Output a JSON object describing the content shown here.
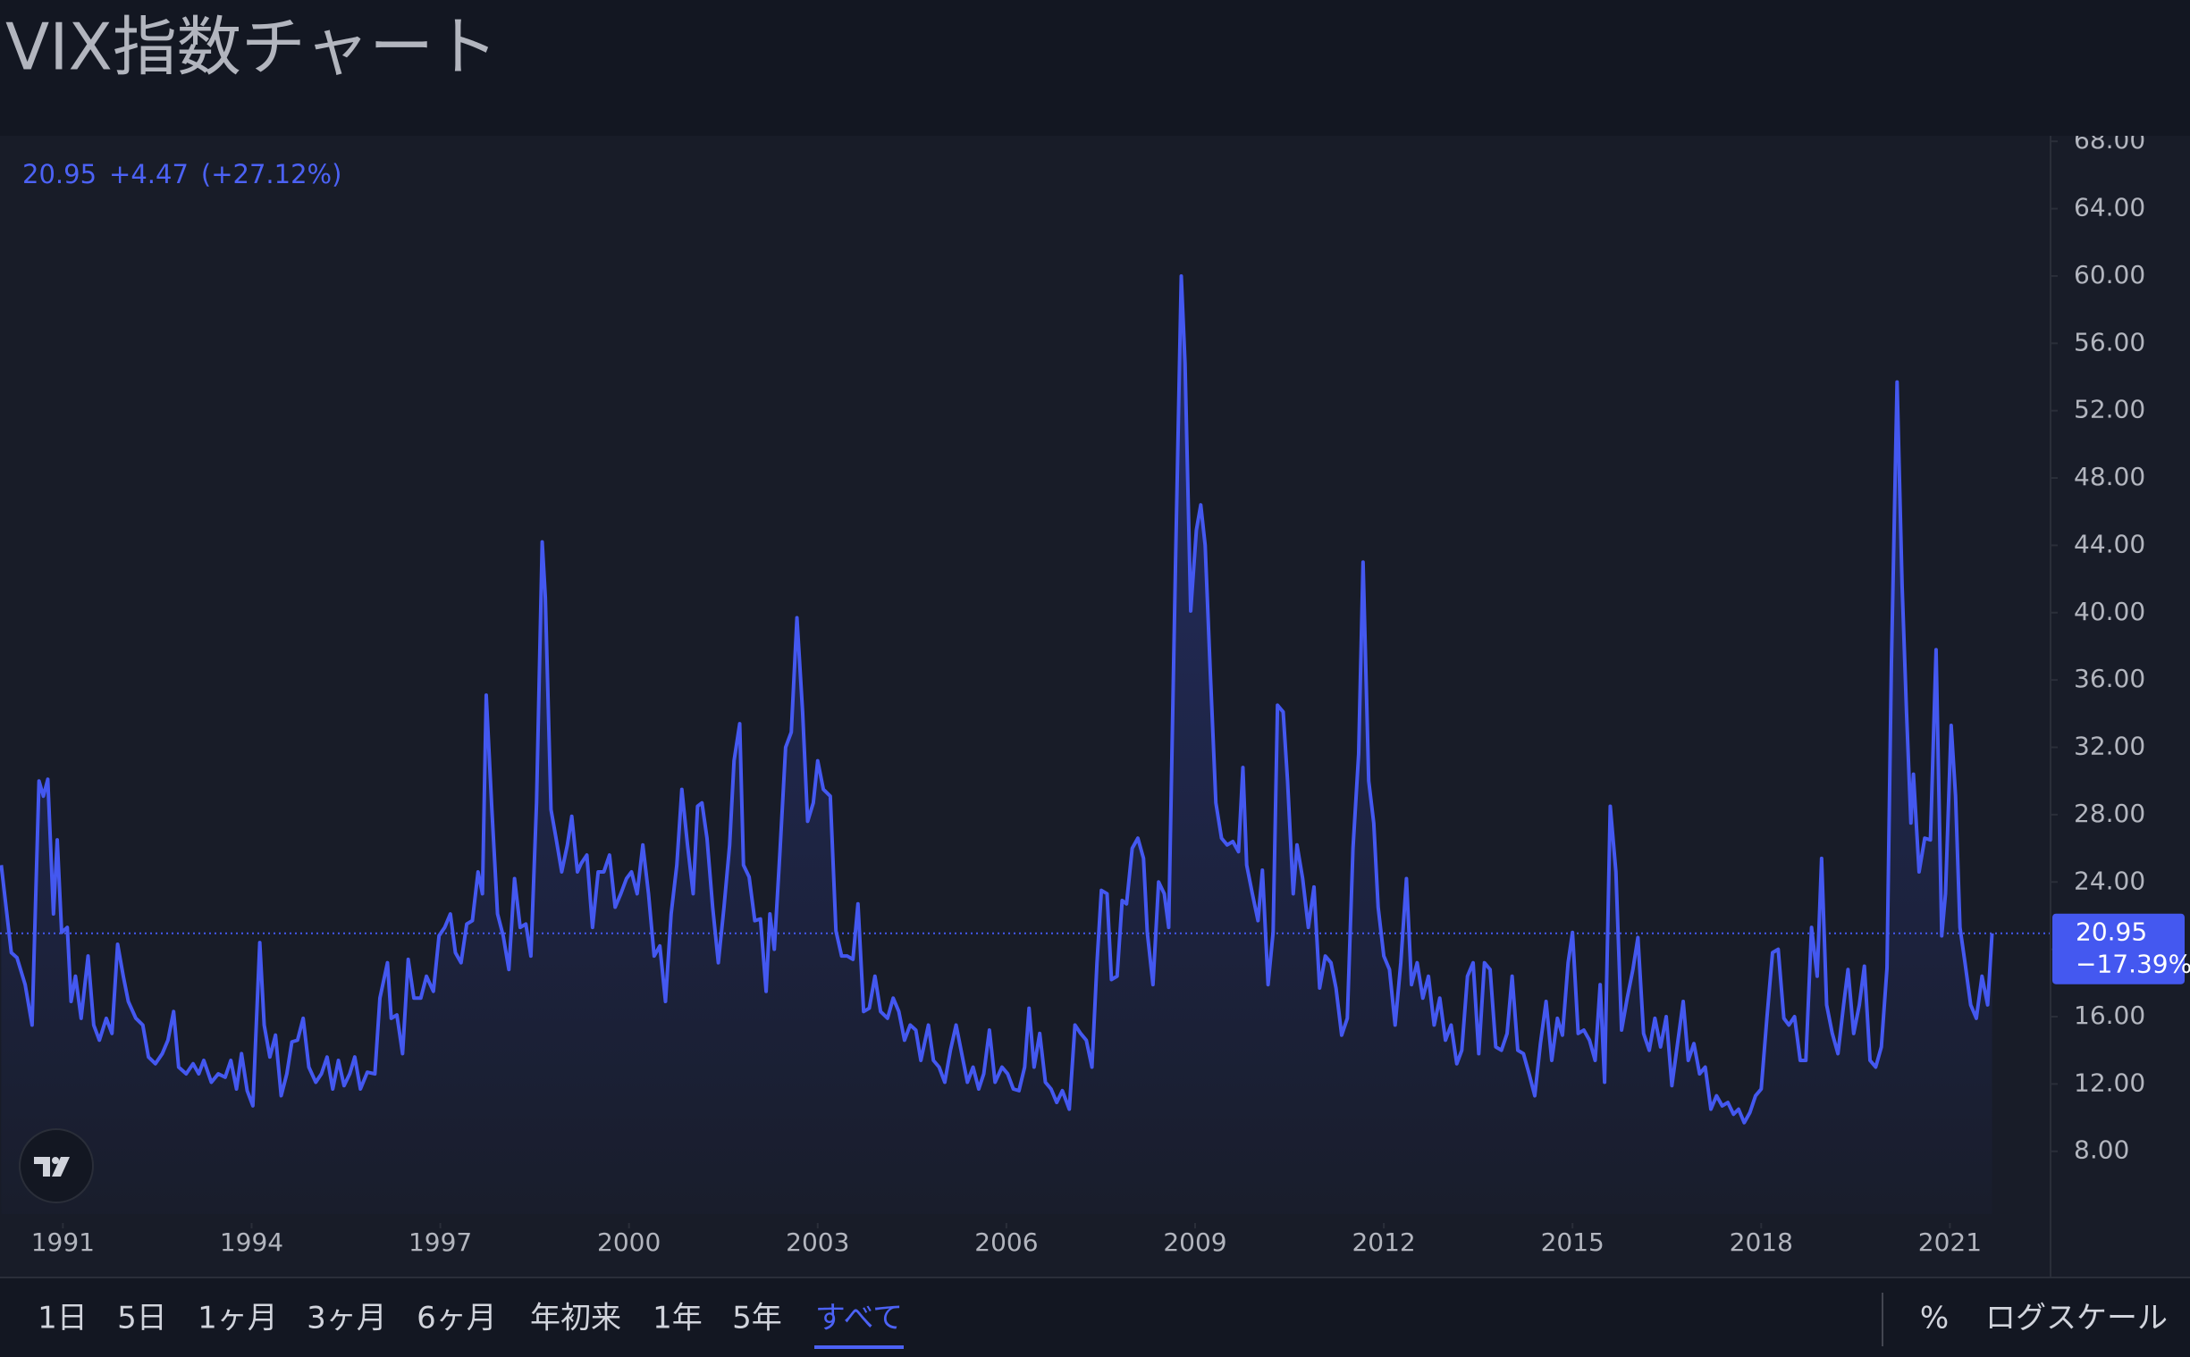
{
  "title": "VIX指数チャート",
  "chart_data": {
    "type": "line",
    "color": "#4458f0",
    "log_scale": false,
    "grid": false,
    "quote": {
      "last": 20.95,
      "change": "+4.47",
      "change_percent": "(+27.12%)"
    },
    "price_label": {
      "value": 20.95,
      "change": "−17.39%"
    },
    "xlim": [
      1990.0,
      2022.6
    ],
    "xticks": [
      1991,
      1994,
      1997,
      2000,
      2003,
      2006,
      2009,
      2012,
      2015,
      2018,
      2021
    ],
    "ylim": [
      4.27,
      68.33
    ],
    "yticks": [
      {
        "value": 8,
        "label": "8.00"
      },
      {
        "value": 12,
        "label": "12.00"
      },
      {
        "value": 16,
        "label": "16.00"
      },
      {
        "value": 20,
        "label": "20.00"
      },
      {
        "value": 24,
        "label": "24.00"
      },
      {
        "value": 28,
        "label": "28.00"
      },
      {
        "value": 32,
        "label": "32.00"
      },
      {
        "value": 36,
        "label": "36.00"
      },
      {
        "value": 40,
        "label": "40.00"
      },
      {
        "value": 44,
        "label": "44.00"
      },
      {
        "value": 48,
        "label": "48.00"
      },
      {
        "value": 52,
        "label": "52.00"
      },
      {
        "value": 56,
        "label": "56.00"
      },
      {
        "value": 60,
        "label": "60.00"
      },
      {
        "value": 64,
        "label": "64.00"
      },
      {
        "value": 68,
        "label": "68.00"
      }
    ],
    "x": [
      1990.02,
      1990.18,
      1990.27,
      1990.4,
      1990.51,
      1990.62,
      1990.69,
      1990.76,
      1990.85,
      1990.91,
      1990.98,
      1991.07,
      1991.13,
      1991.2,
      1991.29,
      1991.4,
      1991.49,
      1991.58,
      1991.69,
      1991.78,
      1991.87,
      1991.96,
      1992.04,
      1992.16,
      1992.27,
      1992.36,
      1992.47,
      1992.58,
      1992.67,
      1992.76,
      1992.84,
      1992.96,
      1993.07,
      1993.16,
      1993.24,
      1993.36,
      1993.47,
      1993.58,
      1993.67,
      1993.76,
      1993.84,
      1993.93,
      1994.02,
      1994.13,
      1994.2,
      1994.29,
      1994.38,
      1994.47,
      1994.56,
      1994.64,
      1994.73,
      1994.82,
      1994.91,
      1995.02,
      1995.11,
      1995.2,
      1995.29,
      1995.38,
      1995.47,
      1995.56,
      1995.64,
      1995.73,
      1995.84,
      1995.96,
      1996.04,
      1996.16,
      1996.22,
      1996.31,
      1996.4,
      1996.49,
      1996.58,
      1996.69,
      1996.78,
      1996.89,
      1996.98,
      1997.07,
      1997.16,
      1997.24,
      1997.33,
      1997.42,
      1997.51,
      1997.6,
      1997.67,
      1997.73,
      1997.82,
      1997.91,
      1998.0,
      1998.09,
      1998.18,
      1998.27,
      1998.36,
      1998.44,
      1998.53,
      1998.62,
      1998.67,
      1998.76,
      1998.84,
      1998.93,
      1999.02,
      1999.09,
      1999.18,
      1999.24,
      1999.33,
      1999.42,
      1999.51,
      1999.6,
      1999.69,
      1999.78,
      1999.87,
      1999.96,
      2000.04,
      2000.13,
      2000.22,
      2000.31,
      2000.4,
      2000.49,
      2000.58,
      2000.67,
      2000.76,
      2000.84,
      2000.93,
      2001.02,
      2001.09,
      2001.16,
      2001.24,
      2001.33,
      2001.42,
      2001.51,
      2001.6,
      2001.67,
      2001.76,
      2001.82,
      2001.91,
      2002.0,
      2002.09,
      2002.18,
      2002.24,
      2002.31,
      2002.4,
      2002.49,
      2002.58,
      2002.67,
      2002.76,
      2002.84,
      2002.93,
      2003.0,
      2003.09,
      2003.2,
      2003.29,
      2003.38,
      2003.47,
      2003.56,
      2003.64,
      2003.73,
      2003.82,
      2003.91,
      2004.0,
      2004.11,
      2004.2,
      2004.29,
      2004.38,
      2004.47,
      2004.56,
      2004.64,
      2004.76,
      2004.84,
      2004.93,
      2005.02,
      2005.11,
      2005.2,
      2005.29,
      2005.38,
      2005.47,
      2005.56,
      2005.64,
      2005.73,
      2005.82,
      2005.93,
      2006.02,
      2006.11,
      2006.2,
      2006.29,
      2006.36,
      2006.44,
      2006.53,
      2006.62,
      2006.71,
      2006.8,
      2006.89,
      2007.0,
      2007.09,
      2007.18,
      2007.27,
      2007.36,
      2007.44,
      2007.51,
      2007.6,
      2007.67,
      2007.76,
      2007.84,
      2007.91,
      2008.0,
      2008.09,
      2008.18,
      2008.24,
      2008.33,
      2008.42,
      2008.51,
      2008.58,
      2008.69,
      2008.78,
      2008.84,
      2008.93,
      2009.02,
      2009.09,
      2009.16,
      2009.24,
      2009.33,
      2009.42,
      2009.51,
      2009.6,
      2009.69,
      2009.76,
      2009.82,
      2009.91,
      2010.0,
      2010.07,
      2010.16,
      2010.24,
      2010.31,
      2010.4,
      2010.47,
      2010.56,
      2010.62,
      2010.71,
      2010.8,
      2010.89,
      2010.98,
      2011.07,
      2011.16,
      2011.24,
      2011.33,
      2011.42,
      2011.51,
      2011.6,
      2011.67,
      2011.76,
      2011.84,
      2011.91,
      2012.0,
      2012.09,
      2012.18,
      2012.27,
      2012.36,
      2012.44,
      2012.53,
      2012.62,
      2012.71,
      2012.8,
      2012.89,
      2012.98,
      2013.07,
      2013.16,
      2013.24,
      2013.33,
      2013.42,
      2013.51,
      2013.6,
      2013.69,
      2013.78,
      2013.87,
      2013.96,
      2014.04,
      2014.13,
      2014.22,
      2014.31,
      2014.4,
      2014.49,
      2014.58,
      2014.67,
      2014.76,
      2014.84,
      2014.93,
      2015.0,
      2015.09,
      2015.18,
      2015.27,
      2015.36,
      2015.44,
      2015.51,
      2015.6,
      2015.69,
      2015.78,
      2015.87,
      2015.96,
      2016.04,
      2016.13,
      2016.22,
      2016.31,
      2016.4,
      2016.49,
      2016.58,
      2016.67,
      2016.76,
      2016.84,
      2016.93,
      2017.02,
      2017.11,
      2017.2,
      2017.29,
      2017.38,
      2017.47,
      2017.56,
      2017.64,
      2017.73,
      2017.82,
      2017.91,
      2018.0,
      2018.09,
      2018.18,
      2018.27,
      2018.36,
      2018.44,
      2018.53,
      2018.62,
      2018.71,
      2018.8,
      2018.89,
      2018.96,
      2019.04,
      2019.13,
      2019.22,
      2019.31,
      2019.38,
      2019.47,
      2019.56,
      2019.64,
      2019.73,
      2019.82,
      2019.91,
      2020.0,
      2020.07,
      2020.16,
      2020.24,
      2020.31,
      2020.38,
      2020.42,
      2020.51,
      2020.6,
      2020.69,
      2020.78,
      2020.87,
      2020.93,
      2021.02,
      2021.09,
      2021.16,
      2021.24,
      2021.33,
      2021.42,
      2021.51,
      2021.6,
      2021.67
    ],
    "values": [
      25.0,
      19.8,
      19.5,
      17.9,
      15.5,
      30.0,
      29.1,
      30.1,
      22.1,
      26.5,
      21.0,
      21.3,
      16.9,
      18.4,
      15.9,
      19.6,
      15.5,
      14.6,
      15.9,
      15.0,
      20.3,
      18.4,
      16.9,
      15.9,
      15.5,
      13.6,
      13.2,
      13.8,
      14.6,
      16.3,
      13.0,
      12.6,
      13.2,
      12.6,
      13.4,
      12.1,
      12.6,
      12.4,
      13.4,
      11.7,
      13.8,
      11.6,
      10.7,
      20.4,
      15.5,
      13.6,
      14.9,
      11.3,
      12.6,
      14.5,
      14.6,
      15.9,
      13.0,
      12.1,
      12.6,
      13.6,
      11.7,
      13.4,
      11.9,
      12.6,
      13.6,
      11.7,
      12.7,
      12.6,
      17.1,
      19.2,
      15.9,
      16.1,
      13.8,
      19.4,
      17.1,
      17.1,
      18.4,
      17.5,
      20.8,
      21.3,
      22.1,
      19.8,
      19.2,
      21.5,
      21.7,
      24.6,
      23.3,
      35.1,
      28.3,
      22.1,
      20.8,
      18.8,
      24.2,
      21.3,
      21.5,
      19.6,
      28.7,
      44.2,
      40.9,
      28.3,
      26.6,
      24.6,
      26.2,
      27.9,
      24.6,
      25.1,
      25.6,
      21.3,
      24.6,
      24.6,
      25.6,
      22.5,
      23.3,
      24.2,
      24.6,
      23.3,
      26.2,
      23.3,
      19.6,
      20.2,
      16.9,
      22.1,
      25.0,
      29.5,
      26.2,
      23.3,
      28.5,
      28.7,
      26.6,
      22.5,
      19.2,
      22.5,
      26.2,
      31.2,
      33.4,
      25.0,
      24.3,
      21.7,
      21.8,
      17.5,
      22.1,
      20.0,
      25.8,
      32.0,
      32.9,
      39.7,
      34.1,
      27.6,
      28.7,
      31.2,
      29.5,
      29.1,
      21.1,
      19.6,
      19.6,
      19.4,
      22.7,
      16.3,
      16.5,
      18.4,
      16.3,
      15.9,
      17.1,
      16.3,
      14.6,
      15.5,
      15.2,
      13.4,
      15.5,
      13.4,
      13.0,
      12.1,
      14.0,
      15.5,
      13.8,
      12.1,
      13.0,
      11.7,
      12.6,
      15.2,
      12.1,
      13.0,
      12.6,
      11.7,
      11.6,
      13.0,
      16.5,
      13.0,
      15.0,
      12.1,
      11.7,
      10.9,
      11.6,
      10.5,
      15.5,
      15.0,
      14.6,
      13.0,
      19.2,
      23.5,
      23.3,
      18.2,
      18.4,
      22.9,
      22.7,
      26.0,
      26.6,
      25.4,
      21.0,
      17.9,
      24.0,
      23.3,
      21.3,
      43.2,
      60.0,
      54.8,
      40.1,
      44.9,
      46.4,
      44.0,
      36.6,
      28.7,
      26.6,
      26.2,
      26.4,
      25.8,
      30.8,
      25.0,
      23.3,
      21.7,
      24.7,
      17.9,
      21.0,
      34.5,
      34.1,
      30.0,
      23.3,
      26.2,
      24.2,
      21.3,
      23.7,
      17.7,
      19.6,
      19.2,
      17.7,
      14.9,
      15.9,
      26.0,
      31.6,
      43.0,
      30.0,
      27.5,
      22.5,
      19.6,
      18.8,
      15.5,
      19.2,
      24.2,
      17.9,
      19.2,
      17.1,
      18.4,
      15.5,
      17.1,
      14.6,
      15.5,
      13.2,
      14.0,
      18.4,
      19.2,
      13.8,
      19.2,
      18.8,
      14.2,
      14.0,
      15.0,
      18.4,
      14.0,
      13.8,
      12.6,
      11.3,
      14.4,
      16.9,
      13.4,
      15.9,
      14.9,
      19.2,
      21.0,
      15.0,
      15.2,
      14.6,
      13.4,
      17.9,
      12.1,
      28.5,
      24.6,
      15.2,
      17.1,
      18.8,
      20.7,
      15.0,
      14.0,
      15.9,
      14.2,
      16.0,
      11.9,
      14.4,
      16.9,
      13.4,
      14.4,
      12.6,
      13.0,
      10.5,
      11.3,
      10.7,
      10.9,
      10.2,
      10.5,
      9.7,
      10.3,
      11.3,
      11.7,
      15.9,
      19.8,
      20.0,
      15.9,
      15.5,
      16.0,
      13.4,
      13.4,
      21.3,
      18.4,
      25.4,
      16.7,
      15.0,
      13.8,
      16.7,
      18.8,
      15.0,
      16.7,
      19.0,
      13.4,
      13.0,
      14.2,
      18.9,
      37.0,
      53.7,
      41.6,
      34.1,
      27.5,
      30.4,
      24.6,
      26.6,
      26.5,
      37.8,
      20.8,
      23.3,
      33.3,
      29.1,
      21.3,
      19.2,
      16.7,
      15.9,
      18.4,
      16.7,
      20.95
    ]
  },
  "toolbar": {
    "ranges": [
      "1日",
      "5日",
      "1ヶ月",
      "3ヶ月",
      "6ヶ月",
      "年初来",
      "1年",
      "5年",
      "すべて"
    ],
    "percent": "%",
    "log_scale": "ログスケール"
  }
}
